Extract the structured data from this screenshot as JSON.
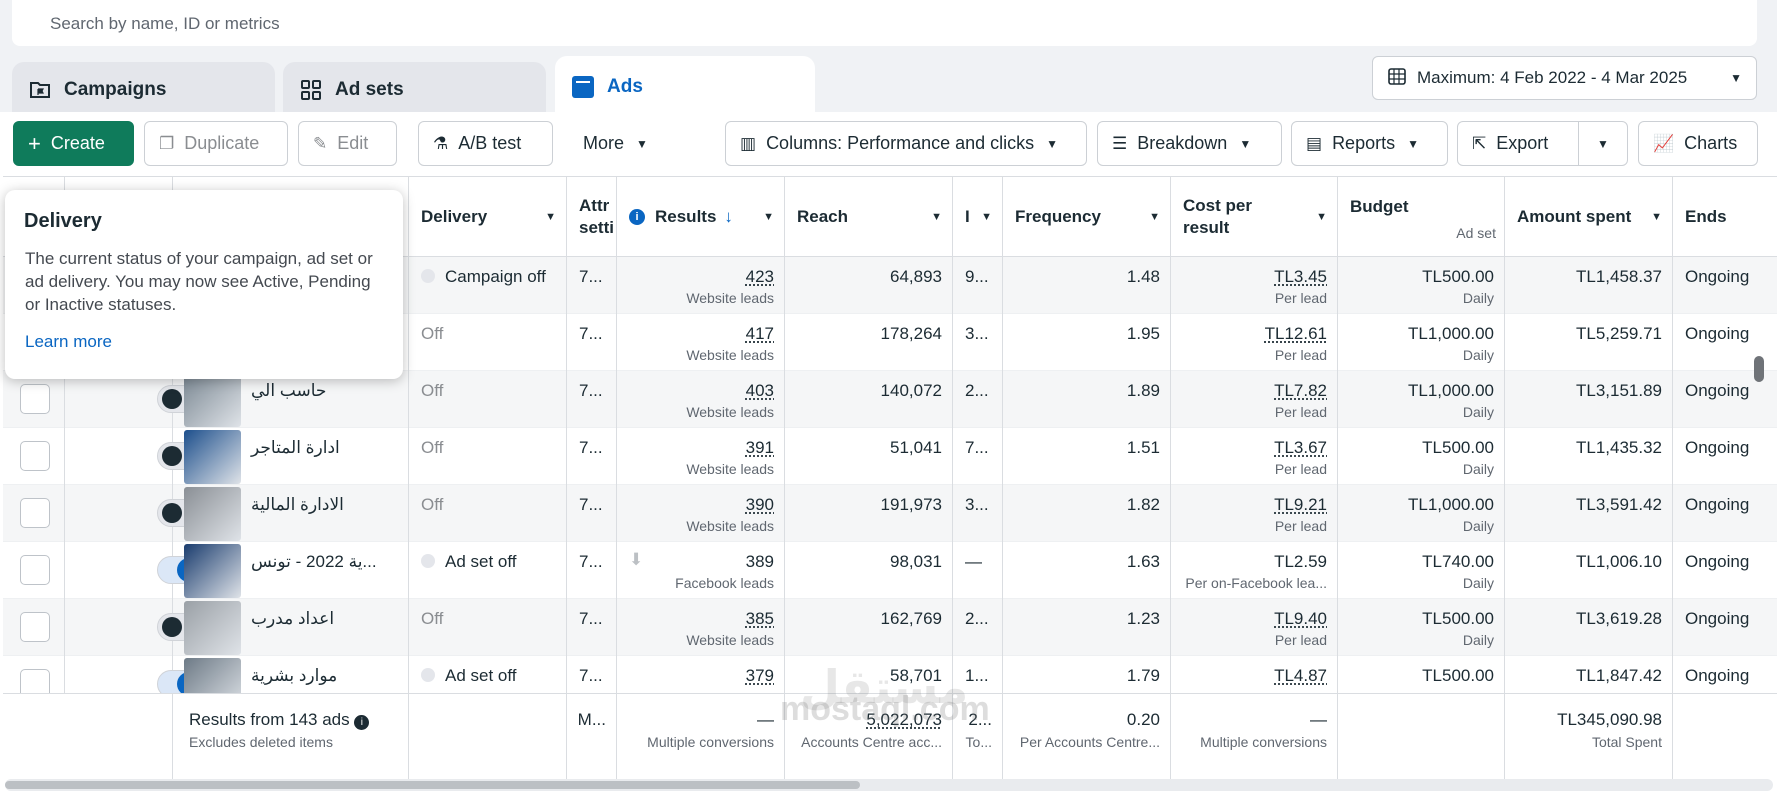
{
  "search": {
    "placeholder": "Search by name, ID or metrics"
  },
  "tabs": [
    {
      "label": "Campaigns",
      "icon": "folder-flag-icon"
    },
    {
      "label": "Ad sets",
      "icon": "grid-icon"
    },
    {
      "label": "Ads",
      "icon": "ad-icon"
    }
  ],
  "date_range": "Maximum: 4 Feb 2022 - 4 Mar 2025",
  "toolbar": {
    "create": "Create",
    "duplicate": "Duplicate",
    "edit": "Edit",
    "ab_test": "A/B test",
    "more": "More",
    "columns": "Columns: Performance and clicks",
    "breakdown": "Breakdown",
    "reports": "Reports",
    "export": "Export",
    "charts": "Charts"
  },
  "columns": {
    "delivery": "Delivery",
    "attribution": "Attr setti",
    "results": "Results",
    "reach": "Reach",
    "impressions": "I",
    "frequency": "Frequency",
    "cost_per_result": "Cost per result",
    "budget": "Budget",
    "budget_sub": "Ad set",
    "amount_spent": "Amount spent",
    "ends": "Ends"
  },
  "tooltip": {
    "title": "Delivery",
    "body": "The current status of your campaign, ad set or ad delivery. You may now see Active, Pending or Inactive statuses.",
    "link": "Learn more"
  },
  "rows": [
    {
      "name": "",
      "toggle": "hidden",
      "delivery": "Campaign off",
      "delivery_dot": true,
      "attr": "7...",
      "result": "423",
      "result_type": "Website leads",
      "reach": "64,893",
      "imp": "9...",
      "freq": "1.48",
      "cpr": "TL3.45",
      "cpr_sub": "Per lead",
      "budget": "TL500.00",
      "budget_sub": "Daily",
      "spent": "TL1,458.37",
      "ends": "Ongoing",
      "thumb": "#5a6b7c"
    },
    {
      "name": "",
      "toggle": "hidden",
      "delivery": "Off",
      "delivery_dot": false,
      "attr": "7...",
      "result": "417",
      "result_type": "Website leads",
      "reach": "178,264",
      "imp": "3...",
      "freq": "1.95",
      "cpr": "TL12.61",
      "cpr_sub": "Per lead",
      "budget": "TL1,000.00",
      "budget_sub": "Daily",
      "spent": "TL5,259.71",
      "ends": "Ongoing",
      "thumb": "#667788"
    },
    {
      "name": "حاسب الي",
      "toggle": "off",
      "delivery": "Off",
      "delivery_dot": false,
      "attr": "7...",
      "result": "403",
      "result_type": "Website leads",
      "reach": "140,072",
      "imp": "2...",
      "freq": "1.89",
      "cpr": "TL7.82",
      "cpr_sub": "Per lead",
      "budget": "TL1,000.00",
      "budget_sub": "Daily",
      "spent": "TL3,151.89",
      "ends": "Ongoing",
      "thumb": "#7a8792"
    },
    {
      "name": "ادارة المتاجر",
      "toggle": "off",
      "delivery": "Off",
      "delivery_dot": false,
      "attr": "7...",
      "result": "391",
      "result_type": "Website leads",
      "reach": "51,041",
      "imp": "7...",
      "freq": "1.51",
      "cpr": "TL3.67",
      "cpr_sub": "Per lead",
      "budget": "TL500.00",
      "budget_sub": "Daily",
      "spent": "TL1,435.32",
      "ends": "Ongoing",
      "thumb": "#1d4f8c"
    },
    {
      "name": "الادارة المالية",
      "toggle": "off",
      "delivery": "Off",
      "delivery_dot": false,
      "attr": "7...",
      "result": "390",
      "result_type": "Website leads",
      "reach": "191,973",
      "imp": "3...",
      "freq": "1.82",
      "cpr": "TL9.21",
      "cpr_sub": "Per lead",
      "budget": "TL1,000.00",
      "budget_sub": "Daily",
      "spent": "TL3,591.42",
      "ends": "Ongoing",
      "thumb": "#8a8f95"
    },
    {
      "name": "...ية 2022 - تونس",
      "toggle": "on",
      "delivery": "Ad set off",
      "delivery_dot": true,
      "attr": "7...",
      "result": "389",
      "result_type": "Facebook leads",
      "reach": "98,031",
      "imp": "—",
      "freq": "1.63",
      "cpr": "TL2.59",
      "cpr_sub": "Per on-Facebook lea...",
      "budget": "TL740.00",
      "budget_sub": "Daily",
      "spent": "TL1,006.10",
      "ends": "Ongoing",
      "thumb": "#1a3c6e",
      "fb": true
    },
    {
      "name": "اعداد مدرب",
      "toggle": "off",
      "delivery": "Off",
      "delivery_dot": false,
      "attr": "7...",
      "result": "385",
      "result_type": "Website leads",
      "reach": "162,769",
      "imp": "2...",
      "freq": "1.23",
      "cpr": "TL9.40",
      "cpr_sub": "Per lead",
      "budget": "TL500.00",
      "budget_sub": "Daily",
      "spent": "TL3,619.28",
      "ends": "Ongoing",
      "thumb": "#9aa0a6"
    },
    {
      "name": "موارد بشرية",
      "toggle": "on",
      "delivery": "Ad set off",
      "delivery_dot": true,
      "attr": "7...",
      "result": "379",
      "result_type": "",
      "reach": "58,701",
      "imp": "1...",
      "freq": "1.79",
      "cpr": "TL4.87",
      "cpr_sub": "",
      "budget": "TL500.00",
      "budget_sub": "",
      "spent": "TL1,847.42",
      "ends": "Ongoing",
      "thumb": "#6d7a86"
    }
  ],
  "footer": {
    "results_from": "Results from 143 ads",
    "excludes": "Excludes deleted items",
    "attr": "M...",
    "results": "—",
    "results_sub": "Multiple conversions",
    "reach": "5,022,073",
    "reach_sub": "Accounts Centre acc...",
    "imp": "2...",
    "imp_sub": "To...",
    "freq": "0.20",
    "freq_sub": "Per Accounts Centre...",
    "cpr": "—",
    "cpr_sub": "Multiple conversions",
    "spent": "TL345,090.98",
    "spent_sub": "Total Spent"
  },
  "watermark": {
    "arabic": "مستقل",
    "latin": "mostaql.com"
  }
}
